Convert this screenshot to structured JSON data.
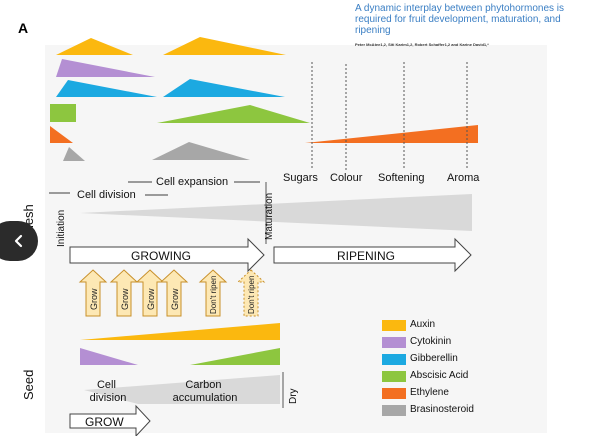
{
  "panel_label": "A",
  "paper": {
    "title": "A dynamic interplay between phytohormones is required for fruit development, maturation, and ripening",
    "authors": "Peter McAtee1,2, Siti Karim1,2, Robert Schaffer1,2 and Karine David1,*"
  },
  "nav": {
    "icon": "chevron-left-icon"
  },
  "side_labels": {
    "flesh": "Flesh",
    "seed": "Seed"
  },
  "stages": {
    "initiation": "Initiation",
    "cell_division": "Cell division",
    "cell_expansion": "Cell expansion",
    "maturation": "Maturation",
    "dry": "Dry"
  },
  "ripening_events": [
    "Sugars",
    "Colour",
    "Softening",
    "Aroma"
  ],
  "arrows": {
    "growing": "GROWING",
    "ripening": "RIPENING",
    "grow": "GROW"
  },
  "signals": [
    "Grow",
    "Grow",
    "Grow",
    "Grow",
    "Don't ripen",
    "Don't ripen"
  ],
  "seed_stages": {
    "cell_division": "Cell division",
    "carbon_accumulation": "Carbon accumulation"
  },
  "colors": {
    "auxin": "#fbb80f",
    "cytokinin": "#b48fd3",
    "gibberellin": "#1ca9e1",
    "abscisic_acid": "#8dc63f",
    "ethylene": "#f36f21",
    "brassinosteroid": "#a7a7a7",
    "signal_fill": "#fde8b4",
    "signal_stroke": "#c8902a",
    "link": "#3b7fc4"
  },
  "legend": [
    {
      "label": "Auxin",
      "color": "#fbb80f"
    },
    {
      "label": "Cytokinin",
      "color": "#b48fd3"
    },
    {
      "label": "Gibberellin",
      "color": "#1ca9e1"
    },
    {
      "label": "Abscisic Acid",
      "color": "#8dc63f"
    },
    {
      "label": "Ethylene",
      "color": "#f36f21"
    },
    {
      "label": "Brasinosteroid",
      "color": "#a7a7a7"
    }
  ]
}
